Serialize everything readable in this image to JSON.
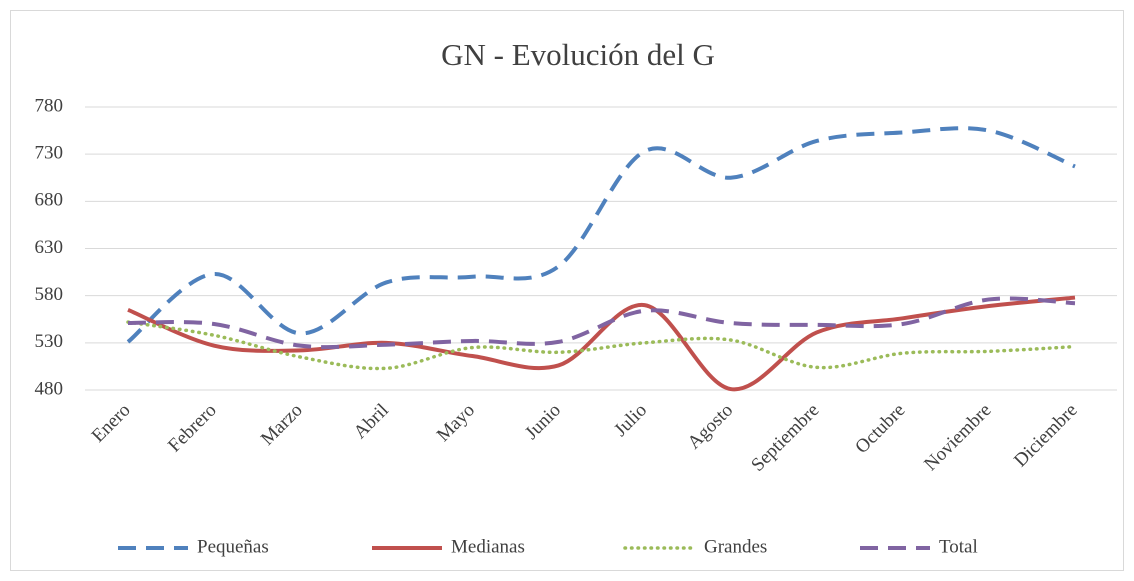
{
  "chart_data": {
    "type": "line",
    "title": "GN - Evolución del G",
    "categories": [
      "Enero",
      "Febrero",
      "Marzo",
      "Abril",
      "Mayo",
      "Junio",
      "Julio",
      "Agosto",
      "Septiembre",
      "Octubre",
      "Noviembre",
      "Diciembre"
    ],
    "series": [
      {
        "name": "Pequeñas",
        "color": "#4f81bd",
        "dash": "dashed",
        "values": [
          531,
          603,
          540,
          594,
          600,
          611,
          733,
          705,
          744,
          753,
          755,
          717
        ]
      },
      {
        "name": "Medianas",
        "color": "#c0504d",
        "dash": "solid",
        "values": [
          565,
          527,
          522,
          530,
          516,
          506,
          570,
          481,
          541,
          556,
          569,
          578
        ]
      },
      {
        "name": "Grandes",
        "color": "#9bbb59",
        "dash": "dotted",
        "values": [
          552,
          538,
          515,
          503,
          525,
          520,
          530,
          533,
          504,
          519,
          521,
          526
        ]
      },
      {
        "name": "Total",
        "color": "#8064a2",
        "dash": "dashed",
        "values": [
          551,
          550,
          527,
          528,
          532,
          531,
          564,
          551,
          549,
          550,
          576,
          572
        ]
      }
    ],
    "ylim": [
      480,
      780
    ],
    "yticks": [
      480,
      530,
      580,
      630,
      680,
      730,
      780
    ],
    "grid": true,
    "legend": "bottom"
  }
}
